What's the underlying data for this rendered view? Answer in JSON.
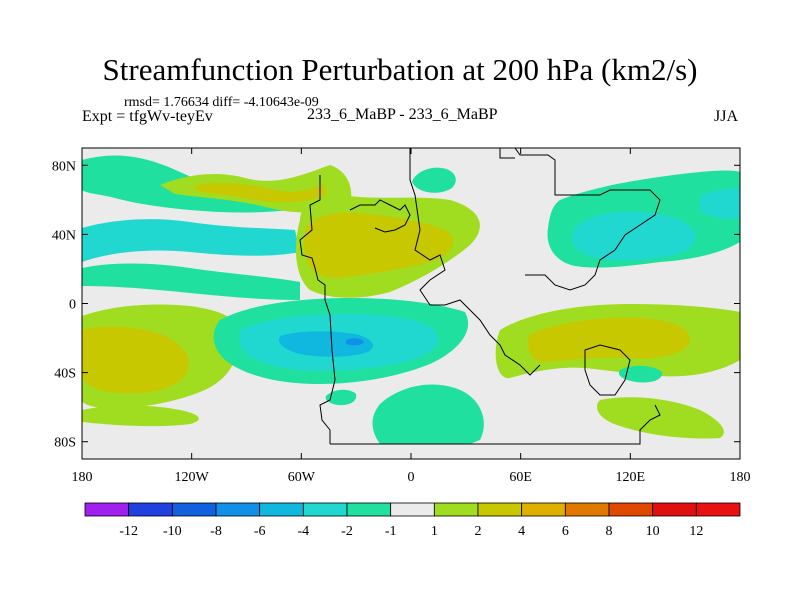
{
  "chart_data": {
    "type": "heatmap",
    "title": "Streamfunction Perturbation at 200 hPa (km2/s)",
    "subtitle_left_top": "rmsd= 1.76634 diff= -4.10643e-09",
    "subtitle_left": "Expt = tfgWv-teyEv",
    "subtitle_center": "233_6_MaBP - 233_6_MaBP",
    "subtitle_right": "JJA",
    "x_ticks": [
      "180",
      "120W",
      "60W",
      "0",
      "60E",
      "120E",
      "180"
    ],
    "y_ticks": [
      "80N",
      "40N",
      "0",
      "40S",
      "80S"
    ],
    "x_range": [
      -180,
      180
    ],
    "y_range": [
      -90,
      90
    ],
    "colorbar": {
      "labels": [
        "-12",
        "-10",
        "-8",
        "-6",
        "-4",
        "-2",
        "-1",
        "1",
        "2",
        "4",
        "6",
        "8",
        "10",
        "12"
      ],
      "colors": [
        "#a020f0",
        "#2040e0",
        "#1060e0",
        "#1090e8",
        "#10b8e0",
        "#20d8d0",
        "#20e0a0",
        "#ebebeb",
        "#a0dc20",
        "#c8c800",
        "#e0b000",
        "#e07800",
        "#e04800",
        "#e01010",
        "#e81010"
      ]
    },
    "regions": [
      {
        "name": "na-upper-green",
        "level": "1 to 2",
        "lon": -157,
        "lat": 49,
        "rx": 30,
        "ry": 12
      },
      {
        "name": "na-upper-yellow",
        "level": "2 to 4",
        "lon": -125,
        "lat": 47,
        "rx": 30,
        "ry": 5
      },
      {
        "name": "na-pacific-cyan",
        "level": "-4 to -2",
        "lon": -150,
        "lat": 27,
        "rx": 32,
        "ry": 12
      },
      {
        "name": "atlantic-green",
        "level": "1 to 2",
        "lon": -35,
        "lat": 35,
        "rx": 60,
        "ry": 45
      },
      {
        "name": "atlantic-yellow",
        "level": "2 to 4",
        "lon": -35,
        "lat": 28,
        "rx": 50,
        "ry": 30
      },
      {
        "name": "eurasia-cyan",
        "level": "-4 to -2",
        "lon": 110,
        "lat": 27,
        "rx": 30,
        "ry": 16
      },
      {
        "name": "south-pacific-yellow",
        "level": "2 to 4",
        "lon": -160,
        "lat": -35,
        "rx": 20,
        "ry": 20
      },
      {
        "name": "south-atlantic-cyan",
        "level": "-6 to -4",
        "lon": -40,
        "lat": -28,
        "rx": 50,
        "ry": 16
      },
      {
        "name": "south-indian-yellow",
        "level": "2 to 4",
        "lon": 80,
        "lat": -28,
        "rx": 30,
        "ry": 14
      },
      {
        "name": "southern-ocean-green",
        "level": "-1 to -2",
        "lon": 20,
        "lat": -75,
        "rx": 30,
        "ry": 20
      }
    ]
  }
}
